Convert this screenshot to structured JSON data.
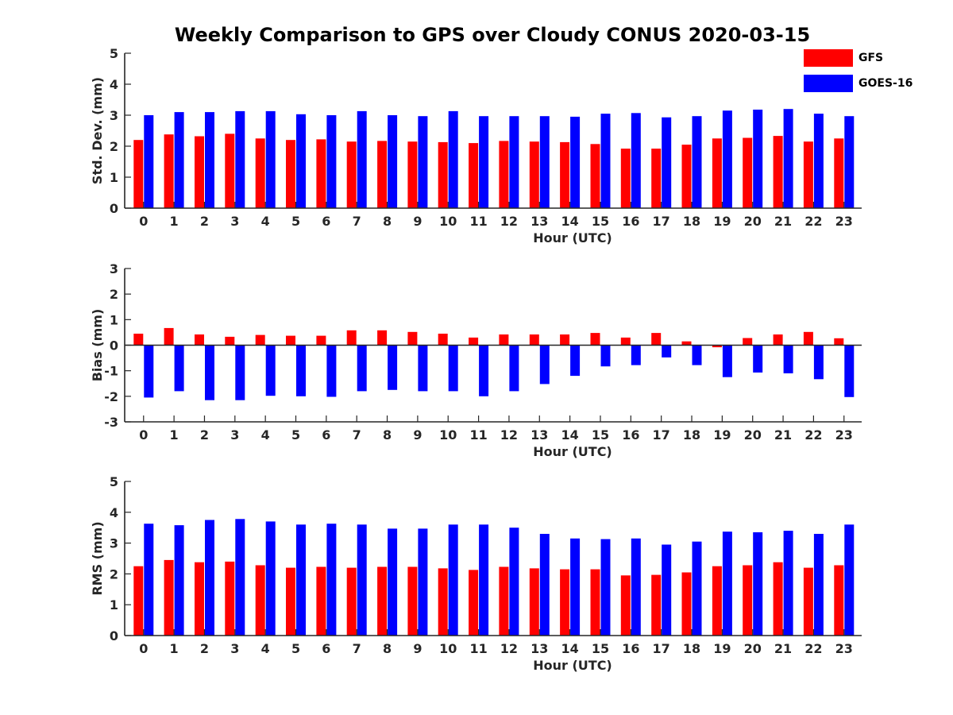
{
  "title": "Weekly Comparison to GPS over Cloudy CONUS 2020-03-15",
  "legend": {
    "placement": "top-right",
    "entries": [
      {
        "name": "GFS",
        "color": "#ff0000"
      },
      {
        "name": "GOES-16",
        "color": "#0000ff"
      }
    ]
  },
  "chart_data": [
    {
      "type": "bar",
      "xlabel": "Hour (UTC)",
      "ylabel": "Std. Dev. (mm)",
      "ylim": [
        0,
        5
      ],
      "yticks": [
        0,
        1,
        2,
        3,
        4,
        5
      ],
      "grid": false,
      "categories": [
        "0",
        "1",
        "2",
        "3",
        "4",
        "5",
        "6",
        "7",
        "8",
        "9",
        "10",
        "11",
        "12",
        "13",
        "14",
        "15",
        "16",
        "17",
        "18",
        "19",
        "20",
        "21",
        "22",
        "23"
      ],
      "series": [
        {
          "name": "GFS",
          "color": "#ff0000",
          "values": [
            2.2,
            2.38,
            2.32,
            2.4,
            2.25,
            2.2,
            2.22,
            2.15,
            2.17,
            2.15,
            2.13,
            2.1,
            2.17,
            2.15,
            2.13,
            2.07,
            1.92,
            1.92,
            2.05,
            2.25,
            2.27,
            2.33,
            2.15,
            2.25
          ]
        },
        {
          "name": "GOES-16",
          "color": "#0000ff",
          "values": [
            3.0,
            3.1,
            3.1,
            3.13,
            3.13,
            3.03,
            3.0,
            3.13,
            3.0,
            2.97,
            3.13,
            2.97,
            2.97,
            2.97,
            2.95,
            3.05,
            3.07,
            2.93,
            2.97,
            3.15,
            3.18,
            3.2,
            3.05,
            2.97
          ]
        }
      ]
    },
    {
      "type": "bar",
      "xlabel": "Hour (UTC)",
      "ylabel": "Bias (mm)",
      "ylim": [
        -3,
        3
      ],
      "yticks": [
        -3,
        -2,
        -1,
        0,
        1,
        2,
        3
      ],
      "grid": false,
      "zero_line": true,
      "categories": [
        "0",
        "1",
        "2",
        "3",
        "4",
        "5",
        "6",
        "7",
        "8",
        "9",
        "10",
        "11",
        "12",
        "13",
        "14",
        "15",
        "16",
        "17",
        "18",
        "19",
        "20",
        "21",
        "22",
        "23"
      ],
      "series": [
        {
          "name": "GFS",
          "color": "#ff0000",
          "values": [
            0.45,
            0.67,
            0.42,
            0.33,
            0.4,
            0.37,
            0.37,
            0.58,
            0.58,
            0.52,
            0.45,
            0.3,
            0.42,
            0.42,
            0.42,
            0.48,
            0.3,
            0.48,
            0.15,
            -0.08,
            0.28,
            0.42,
            0.52,
            0.27
          ]
        },
        {
          "name": "GOES-16",
          "color": "#0000ff",
          "values": [
            -2.05,
            -1.8,
            -2.15,
            -2.15,
            -1.98,
            -2.0,
            -2.02,
            -1.8,
            -1.75,
            -1.8,
            -1.8,
            -2.0,
            -1.8,
            -1.52,
            -1.2,
            -0.83,
            -0.78,
            -0.48,
            -0.78,
            -1.25,
            -1.07,
            -1.1,
            -1.33,
            -2.03
          ]
        }
      ]
    },
    {
      "type": "bar",
      "xlabel": "Hour (UTC)",
      "ylabel": "RMS (mm)",
      "ylim": [
        0,
        5
      ],
      "yticks": [
        0,
        1,
        2,
        3,
        4,
        5
      ],
      "grid": false,
      "categories": [
        "0",
        "1",
        "2",
        "3",
        "4",
        "5",
        "6",
        "7",
        "8",
        "9",
        "10",
        "11",
        "12",
        "13",
        "14",
        "15",
        "16",
        "17",
        "18",
        "19",
        "20",
        "21",
        "22",
        "23"
      ],
      "series": [
        {
          "name": "GFS",
          "color": "#ff0000",
          "values": [
            2.25,
            2.45,
            2.38,
            2.4,
            2.28,
            2.2,
            2.23,
            2.2,
            2.23,
            2.23,
            2.18,
            2.13,
            2.23,
            2.18,
            2.15,
            2.15,
            1.95,
            1.97,
            2.05,
            2.25,
            2.28,
            2.38,
            2.2,
            2.28
          ]
        },
        {
          "name": "GOES-16",
          "color": "#0000ff",
          "values": [
            3.63,
            3.58,
            3.75,
            3.78,
            3.7,
            3.6,
            3.63,
            3.6,
            3.47,
            3.47,
            3.6,
            3.6,
            3.5,
            3.3,
            3.15,
            3.13,
            3.15,
            2.95,
            3.05,
            3.37,
            3.35,
            3.4,
            3.3,
            3.6
          ]
        }
      ]
    }
  ]
}
